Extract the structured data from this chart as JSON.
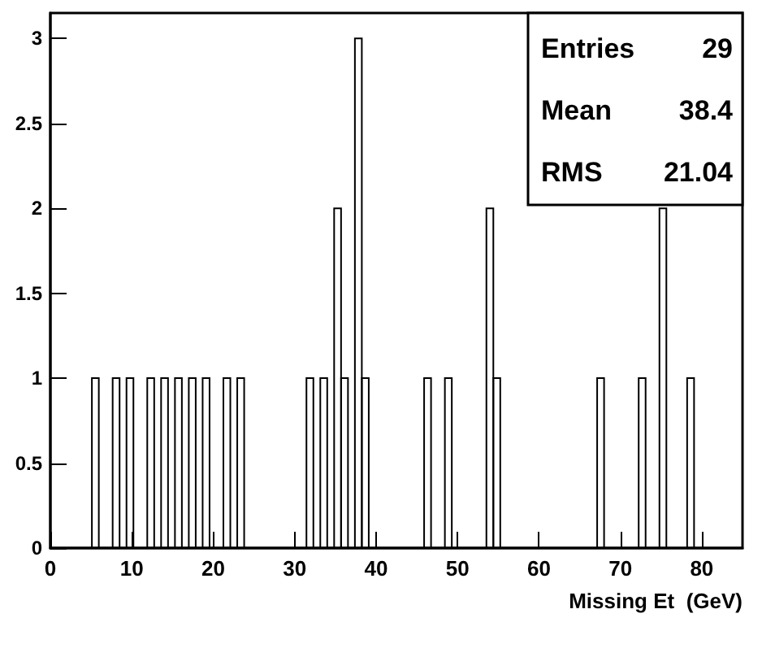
{
  "chart_data": {
    "type": "histogram",
    "xlabel": "Missing Et  (GeV)",
    "bins": [
      0,
      0.85,
      1.7,
      2.55,
      3.4,
      4.25,
      5.1,
      5.95,
      6.8,
      7.65,
      8.5,
      9.35,
      10.2,
      11.05,
      11.9,
      12.75,
      13.6,
      14.45,
      15.3,
      16.15,
      17,
      17.85,
      18.7,
      19.55,
      20.4,
      21.25,
      22.1,
      22.95,
      23.8,
      24.65,
      25.5,
      26.35,
      27.2,
      28.05,
      28.9,
      29.75,
      30.6,
      31.45,
      32.3,
      33.15,
      34,
      34.85,
      35.7,
      36.55,
      37.4,
      38.25,
      39.1,
      39.95,
      40.8,
      41.65,
      42.5,
      43.35,
      44.2,
      45.05,
      45.9,
      46.75,
      47.6,
      48.45,
      49.3,
      50.15,
      51,
      51.85,
      52.7,
      53.55,
      54.4,
      55.25,
      56.1,
      56.95,
      57.8,
      58.65,
      59.5,
      60.35,
      61.2,
      62.05,
      62.9,
      63.75,
      64.6,
      65.45,
      66.3,
      67.15,
      68,
      68.85,
      69.7,
      70.55,
      71.4,
      72.25,
      73.1,
      73.95,
      74.8,
      75.65,
      76.5,
      77.35,
      78.2,
      79.05,
      79.9,
      80.75,
      81.6,
      82.45,
      83.3,
      84.15,
      85
    ],
    "values": [
      0,
      0,
      0,
      0,
      0,
      0,
      1,
      0,
      0,
      1,
      0,
      1,
      0,
      0,
      1,
      0,
      1,
      0,
      1,
      0,
      1,
      0,
      1,
      0,
      0,
      1,
      0,
      1,
      0,
      0,
      0,
      0,
      0,
      0,
      0,
      0,
      0,
      1,
      0,
      1,
      0,
      2,
      1,
      0,
      3,
      1,
      0,
      0,
      0,
      0,
      0,
      0,
      0,
      0,
      1,
      0,
      0,
      1,
      0,
      0,
      0,
      0,
      0,
      2,
      1,
      0,
      0,
      0,
      0,
      0,
      0,
      0,
      0,
      0,
      0,
      0,
      0,
      0,
      0,
      1,
      0,
      0,
      0,
      0,
      0,
      1,
      0,
      0,
      2,
      0,
      0,
      0,
      1,
      0,
      0,
      0,
      0,
      0,
      0,
      0
    ],
    "color": "#000000",
    "xlim": [
      0,
      85
    ],
    "xticks": [
      0,
      10,
      20,
      30,
      40,
      50,
      60,
      70,
      80
    ],
    "ylim": [
      0,
      3.15
    ],
    "yticks": [
      0,
      0.5,
      1,
      1.5,
      2,
      2.5,
      3
    ],
    "annotations": [
      "Entries",
      "29",
      "Mean",
      "38.4",
      "RMS",
      "21.04"
    ],
    "grid": false
  }
}
